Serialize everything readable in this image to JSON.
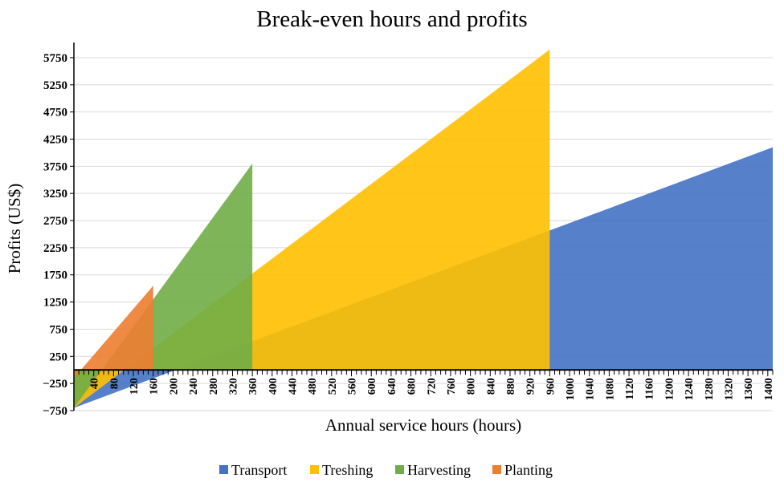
{
  "chart_data": {
    "type": "area",
    "title": "Break-even hours and profits",
    "xlabel": "Annual service hours (hours)",
    "ylabel": "Profits (US$)",
    "xlim": [
      0,
      1410
    ],
    "ylim": [
      -750,
      6000
    ],
    "y_ticks": [
      -750,
      -250,
      250,
      750,
      1250,
      1750,
      2250,
      2750,
      3250,
      3750,
      4250,
      4750,
      5250,
      5750
    ],
    "y_tick_labels": [
      "−750",
      "−250",
      "250",
      "750",
      "1250",
      "1750",
      "2250",
      "2750",
      "3250",
      "3750",
      "4250",
      "4750",
      "5250",
      "5750"
    ],
    "x_ticks": [
      40,
      80,
      120,
      160,
      200,
      240,
      280,
      320,
      360,
      400,
      440,
      480,
      520,
      560,
      600,
      640,
      680,
      720,
      760,
      800,
      840,
      880,
      920,
      960,
      1000,
      1040,
      1080,
      1120,
      1160,
      1200,
      1240,
      1280,
      1320,
      1360,
      1400
    ],
    "x_tick_labels": [
      "40",
      "80",
      "120",
      "160",
      "200",
      "240",
      "280",
      "320",
      "360",
      "400",
      "440",
      "480",
      "520",
      "560",
      "600",
      "640",
      "680",
      "720",
      "760",
      "800",
      "840",
      "880",
      "920",
      "960",
      "1000",
      "1040",
      "1080",
      "1120",
      "1160",
      "1200",
      "1240",
      "1280",
      "1320",
      "1360",
      "1400"
    ],
    "grid": "horizontal",
    "legend_position": "bottom",
    "series": [
      {
        "name": "Transport",
        "color": "#4472C4",
        "x": [
          0,
          1410
        ],
        "y": [
          -700,
          4100
        ]
      },
      {
        "name": "Treshing",
        "color": "#FFC000",
        "x": [
          0,
          960
        ],
        "y": [
          -700,
          5900
        ]
      },
      {
        "name": "Harvesting",
        "color": "#70AD47",
        "x": [
          0,
          360
        ],
        "y": [
          -700,
          3800
        ]
      },
      {
        "name": "Planting",
        "color": "#ED7D31",
        "x": [
          0,
          160
        ],
        "y": [
          -150,
          1550
        ]
      }
    ]
  }
}
